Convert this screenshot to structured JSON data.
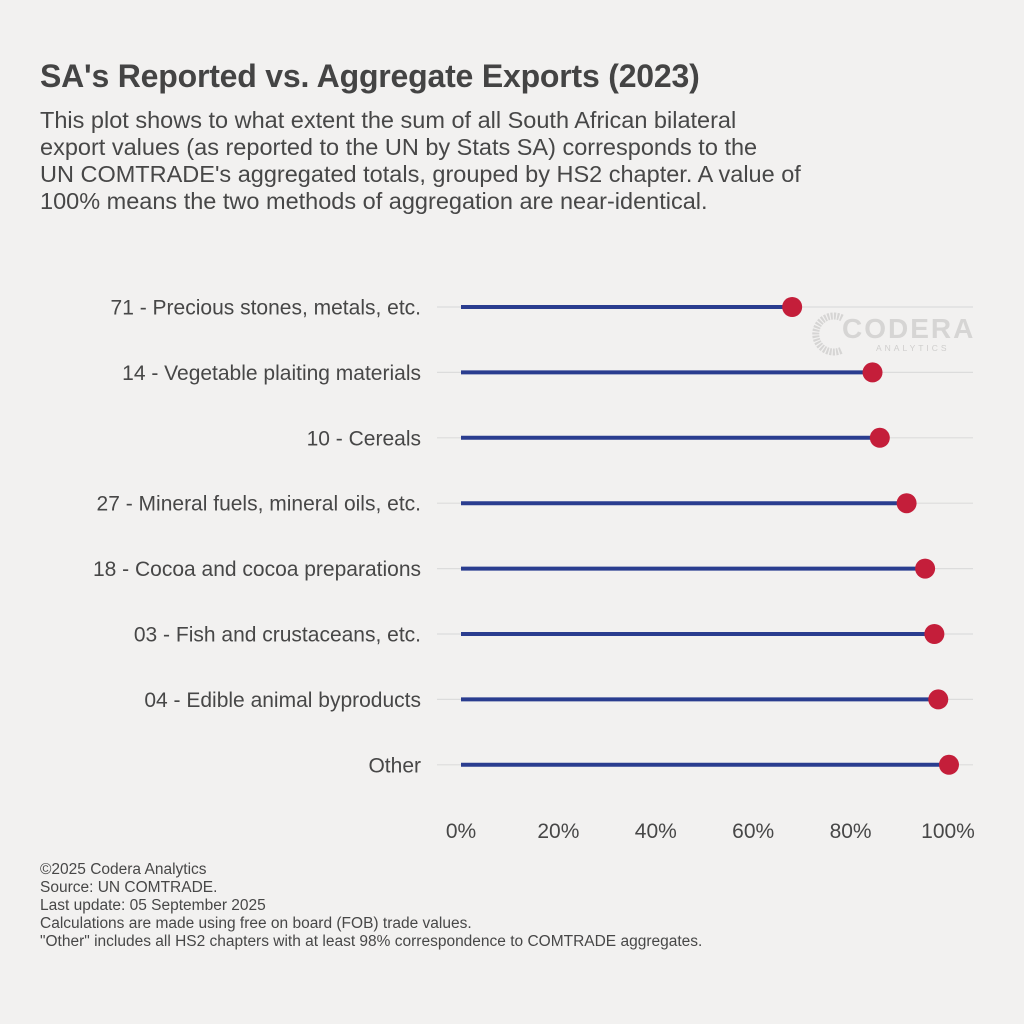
{
  "header": {
    "title": "SA's Reported vs. Aggregate Exports (2023)",
    "subtitle_lines": [
      "This plot shows to what extent the sum of all South African bilateral",
      "export values (as reported to the UN by Stats SA) corresponds to the",
      "UN COMTRADE's aggregated totals, grouped by HS2 chapter. A value of",
      "100% means the two methods of aggregation are near-identical."
    ]
  },
  "logo": {
    "name": "CODERA",
    "tagline": "ANALYTICS",
    "icon": "codera-logo-icon"
  },
  "colors": {
    "background": "#f2f1f0",
    "stem": "#2a3d8f",
    "dot": "#c41e3a",
    "gridline": "#dcdcdc",
    "text": "#474747"
  },
  "chart_data": {
    "type": "lollipop",
    "orientation": "horizontal",
    "title": "SA's Reported vs. Aggregate Exports (2023)",
    "xlabel": "",
    "ylabel": "",
    "xlim": [
      0,
      100
    ],
    "x_ticks": [
      0,
      20,
      40,
      60,
      80,
      100
    ],
    "x_tick_labels": [
      "0%",
      "20%",
      "40%",
      "60%",
      "80%",
      "100%"
    ],
    "grid": "horizontal major only",
    "legend": "none",
    "categories": [
      "71 - Precious stones, metals, etc.",
      "14 - Vegetable plaiting materials",
      "10 - Cereals",
      "27 - Mineral fuels, mineral oils, etc.",
      "18 - Cocoa and cocoa preparations",
      "03 - Fish and crustaceans, etc.",
      "04 - Edible animal byproducts",
      "Other"
    ],
    "values": [
      68,
      84.5,
      86,
      91.5,
      95.3,
      97.2,
      98,
      100.2
    ],
    "units": "%"
  },
  "footer": {
    "lines": [
      "©2025 Codera Analytics",
      "Source: UN COMTRADE.",
      "Last update: 05 September 2025",
      "Calculations are made using free on board (FOB) trade values.",
      "\"Other\" includes all HS2 chapters with at least 98% correspondence to COMTRADE aggregates."
    ]
  }
}
